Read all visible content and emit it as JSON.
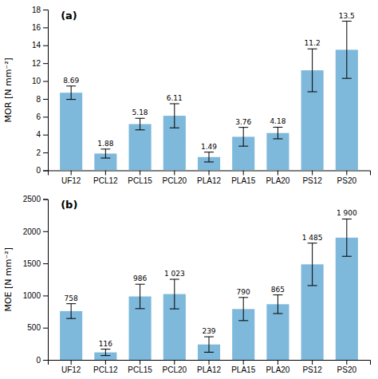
{
  "chart_data": [
    {
      "type": "bar",
      "categories": [
        "UF12",
        "PCL12",
        "PCL15",
        "PCL20",
        "PLA12",
        "PLA15",
        "PLA20",
        "PS12",
        "PS20"
      ],
      "values": [
        8.69,
        1.88,
        5.18,
        6.11,
        1.49,
        3.76,
        4.18,
        11.2,
        13.5
      ],
      "errors": [
        0.75,
        0.5,
        0.65,
        1.35,
        0.55,
        1.05,
        0.65,
        2.4,
        3.2
      ],
      "color": "#7EB8DA",
      "ylabel": "MOR [N mm⁻²]",
      "ylim": [
        0,
        18
      ],
      "yticks": [
        0,
        2,
        4,
        6,
        8,
        10,
        12,
        14,
        16,
        18
      ],
      "data_labels": true,
      "annotation": "(a)"
    },
    {
      "type": "bar",
      "categories": [
        "UF12",
        "PCL12",
        "PCL15",
        "PCL20",
        "PLA12",
        "PLA15",
        "PLA20",
        "PS12",
        "PS20"
      ],
      "values": [
        758,
        116,
        986,
        1023,
        239,
        790,
        865,
        1485,
        1900
      ],
      "errors": [
        115,
        50,
        190,
        230,
        120,
        180,
        145,
        330,
        290
      ],
      "value_labels": [
        "758",
        "116",
        "986",
        "1 023",
        "239",
        "790",
        "865",
        "1 485",
        "1 900"
      ],
      "color": "#7EB8DA",
      "ylabel": "MOE [N mm⁻²]",
      "ylim": [
        0,
        2500
      ],
      "yticks": [
        0,
        500,
        1000,
        1500,
        2000,
        2500
      ],
      "data_labels": true,
      "annotation": "(b)"
    }
  ]
}
